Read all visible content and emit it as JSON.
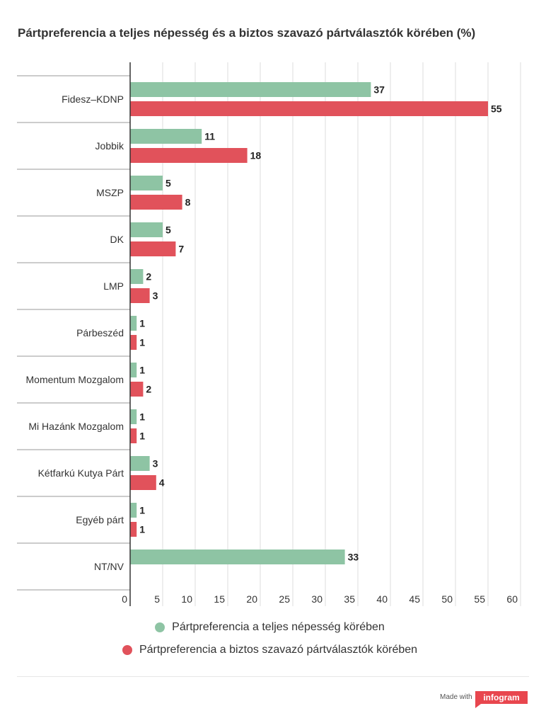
{
  "chart_data": {
    "type": "bar",
    "orientation": "horizontal",
    "title": "Pártpreferencia a teljes népesség és a biztos szavazó pártválasztók körében (%)",
    "xlabel": "",
    "ylabel": "",
    "categories": [
      "Fidesz–KDNP",
      "Jobbik",
      "MSZP",
      "DK",
      "LMP",
      "Párbeszéd",
      "Momentum Mozgalom",
      "Mi Hazánk Mozgalom",
      "Kétfarkú Kutya Párt",
      "Egyéb párt",
      "NT/NV"
    ],
    "series": [
      {
        "name": "Pártpreferencia a teljes népesség körében",
        "color": "#8ec4a4",
        "values": [
          37,
          11,
          5,
          5,
          2,
          1,
          1,
          1,
          3,
          1,
          33
        ]
      },
      {
        "name": "Pártpreferencia a biztos szavazó pártválasztók körében",
        "color": "#e1525b",
        "values": [
          55,
          18,
          8,
          7,
          3,
          1,
          2,
          1,
          4,
          1,
          null
        ]
      }
    ],
    "xlim": [
      0,
      60
    ],
    "xticks": [
      0,
      5,
      10,
      15,
      20,
      25,
      30,
      35,
      40,
      45,
      50,
      55,
      60
    ],
    "grid": true,
    "data_labels": true,
    "legend_position": "bottom"
  },
  "footer": {
    "made_with": "Made with",
    "logo_text": "infogram"
  }
}
